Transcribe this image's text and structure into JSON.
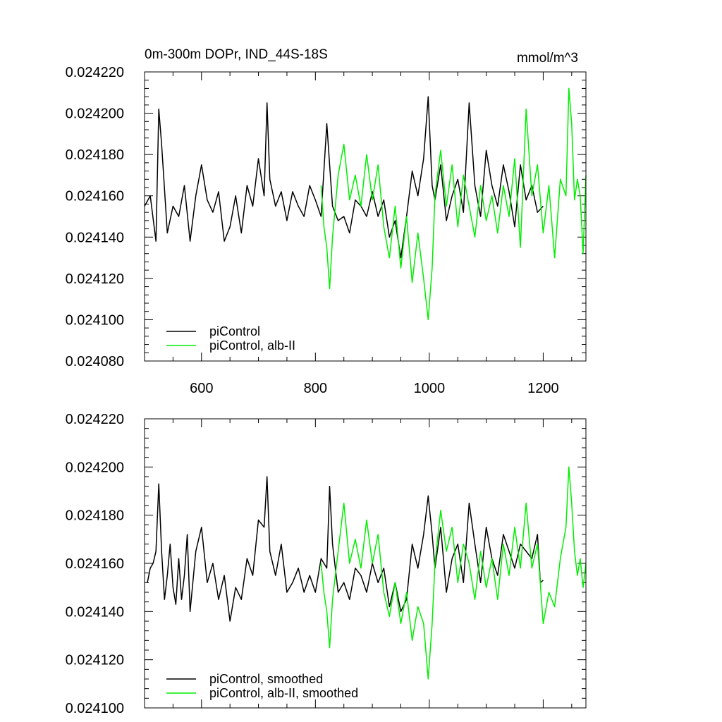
{
  "chart_data": [
    {
      "type": "line",
      "title": "0m-300m DOPr, IND_44S-18S",
      "units": "mmol/m^3",
      "xlim": [
        500,
        1275
      ],
      "ylim": [
        0.02408,
        0.02422
      ],
      "xticks": [
        600,
        800,
        1000,
        1200
      ],
      "xtick_labels": [
        "600",
        "800",
        "1000",
        "1200"
      ],
      "yticks": [
        0.02408,
        0.0241,
        0.02412,
        0.02414,
        0.02416,
        0.02418,
        0.0242,
        0.02422
      ],
      "ytick_labels": [
        "0.024080",
        "0.024100",
        "0.024120",
        "0.024140",
        "0.024160",
        "0.024180",
        "0.024200",
        "0.024220"
      ],
      "legend_position": "bottom-left",
      "series": [
        {
          "name": "piControl",
          "color": "#000000",
          "x": [
            500,
            510,
            520,
            525,
            530,
            540,
            550,
            560,
            570,
            580,
            590,
            600,
            610,
            620,
            630,
            640,
            650,
            660,
            670,
            680,
            690,
            700,
            710,
            715,
            720,
            730,
            740,
            750,
            760,
            770,
            780,
            790,
            800,
            810,
            820,
            825,
            830,
            840,
            850,
            860,
            870,
            880,
            890,
            900,
            910,
            920,
            930,
            940,
            950,
            960,
            970,
            980,
            990,
            998,
            1005,
            1010,
            1020,
            1030,
            1040,
            1050,
            1060,
            1070,
            1080,
            1090,
            1100,
            1110,
            1120,
            1130,
            1140,
            1150,
            1160,
            1170,
            1180,
            1190,
            1200
          ],
          "values": [
            0.024155,
            0.02416,
            0.024138,
            0.024202,
            0.024185,
            0.024142,
            0.024155,
            0.02415,
            0.024165,
            0.024138,
            0.02416,
            0.024175,
            0.024158,
            0.024152,
            0.024162,
            0.024138,
            0.024145,
            0.02416,
            0.024142,
            0.024165,
            0.024155,
            0.024178,
            0.02416,
            0.024205,
            0.024168,
            0.024155,
            0.024162,
            0.024148,
            0.024162,
            0.024155,
            0.02415,
            0.024165,
            0.024158,
            0.02415,
            0.024195,
            0.024175,
            0.024155,
            0.024148,
            0.02415,
            0.024142,
            0.024158,
            0.024155,
            0.02415,
            0.024162,
            0.02415,
            0.024158,
            0.02414,
            0.024148,
            0.02413,
            0.02415,
            0.024172,
            0.02416,
            0.024178,
            0.024208,
            0.024165,
            0.024158,
            0.024175,
            0.024148,
            0.02416,
            0.024168,
            0.024152,
            0.024205,
            0.024165,
            0.02415,
            0.024182,
            0.024165,
            0.024155,
            0.024175,
            0.024162,
            0.024145,
            0.024175,
            0.024158,
            0.024165,
            0.024152,
            0.024155
          ]
        },
        {
          "name": "piControl, alb-II",
          "color": "#00ee00",
          "x": [
            810,
            815,
            820,
            825,
            830,
            840,
            850,
            860,
            870,
            880,
            890,
            900,
            910,
            920,
            930,
            940,
            950,
            960,
            970,
            980,
            990,
            998,
            1005,
            1010,
            1020,
            1030,
            1040,
            1050,
            1060,
            1070,
            1080,
            1090,
            1100,
            1110,
            1120,
            1130,
            1140,
            1150,
            1160,
            1170,
            1180,
            1190,
            1200,
            1210,
            1220,
            1230,
            1240,
            1245,
            1250,
            1255,
            1260,
            1265,
            1270,
            1275
          ],
          "values": [
            0.024165,
            0.024145,
            0.024135,
            0.024115,
            0.02414,
            0.02417,
            0.024185,
            0.024158,
            0.02417,
            0.024155,
            0.02418,
            0.024158,
            0.024175,
            0.024145,
            0.02413,
            0.024155,
            0.024125,
            0.02415,
            0.024118,
            0.024142,
            0.02412,
            0.0241,
            0.024125,
            0.02416,
            0.024182,
            0.024155,
            0.024175,
            0.024145,
            0.02417,
            0.024155,
            0.02414,
            0.024165,
            0.024148,
            0.02416,
            0.024142,
            0.024165,
            0.02415,
            0.024178,
            0.024135,
            0.024202,
            0.02416,
            0.024175,
            0.024142,
            0.024165,
            0.02413,
            0.024168,
            0.02416,
            0.024212,
            0.024195,
            0.024158,
            0.024168,
            0.02416,
            0.024132,
            0.02417
          ]
        }
      ]
    },
    {
      "type": "line",
      "xlim": [
        500,
        1275
      ],
      "ylim": [
        0.0241,
        0.02422
      ],
      "xticks": [
        600,
        800,
        1000,
        1200
      ],
      "yticks": [
        0.0241,
        0.02412,
        0.02414,
        0.02416,
        0.02418,
        0.0242,
        0.02422
      ],
      "ytick_labels": [
        "0.024100",
        "0.024120",
        "0.024140",
        "0.024160",
        "0.024180",
        "0.024200",
        "0.024220"
      ],
      "legend_position": "bottom-left",
      "series": [
        {
          "name": "piControl, smoothed",
          "color": "#000000",
          "x": [
            505,
            510,
            515,
            520,
            525,
            530,
            535,
            540,
            545,
            550,
            555,
            560,
            565,
            570,
            575,
            580,
            590,
            600,
            610,
            620,
            630,
            640,
            650,
            660,
            670,
            680,
            690,
            700,
            710,
            715,
            720,
            730,
            740,
            750,
            760,
            770,
            780,
            790,
            800,
            810,
            820,
            825,
            830,
            840,
            850,
            860,
            870,
            880,
            890,
            900,
            910,
            920,
            930,
            940,
            950,
            960,
            970,
            980,
            990,
            998,
            1005,
            1010,
            1020,
            1030,
            1040,
            1050,
            1060,
            1070,
            1080,
            1090,
            1100,
            1110,
            1120,
            1130,
            1140,
            1150,
            1160,
            1170,
            1180,
            1190,
            1195,
            1200
          ],
          "values": [
            0.024152,
            0.024158,
            0.02416,
            0.024165,
            0.024193,
            0.024165,
            0.024145,
            0.024155,
            0.024168,
            0.02415,
            0.024143,
            0.024162,
            0.024145,
            0.024155,
            0.024172,
            0.02414,
            0.024165,
            0.024175,
            0.024152,
            0.02416,
            0.024145,
            0.024155,
            0.024136,
            0.02415,
            0.024145,
            0.024162,
            0.024155,
            0.024178,
            0.024175,
            0.024196,
            0.024165,
            0.024155,
            0.024168,
            0.024148,
            0.024152,
            0.024158,
            0.024148,
            0.024155,
            0.024148,
            0.024162,
            0.024158,
            0.024192,
            0.024168,
            0.024148,
            0.024152,
            0.024145,
            0.024158,
            0.024155,
            0.024148,
            0.02416,
            0.024152,
            0.024158,
            0.024142,
            0.024152,
            0.02414,
            0.024145,
            0.024168,
            0.024158,
            0.024172,
            0.024188,
            0.024172,
            0.024158,
            0.024175,
            0.024148,
            0.024162,
            0.024168,
            0.024152,
            0.024185,
            0.024168,
            0.024152,
            0.024175,
            0.024162,
            0.024155,
            0.024172,
            0.024165,
            0.024158,
            0.024168,
            0.024165,
            0.024162,
            0.024172,
            0.024152,
            0.024153
          ]
        },
        {
          "name": "piControl, alb-II, smoothed",
          "color": "#00ee00",
          "x": [
            810,
            815,
            820,
            825,
            830,
            840,
            850,
            860,
            870,
            880,
            890,
            900,
            910,
            920,
            930,
            940,
            950,
            960,
            970,
            980,
            990,
            998,
            1005,
            1010,
            1020,
            1030,
            1040,
            1050,
            1060,
            1070,
            1080,
            1090,
            1100,
            1110,
            1120,
            1130,
            1140,
            1150,
            1160,
            1170,
            1180,
            1190,
            1200,
            1210,
            1220,
            1230,
            1240,
            1245,
            1250,
            1255,
            1260,
            1265,
            1270,
            1275
          ],
          "values": [
            0.02416,
            0.024148,
            0.02414,
            0.024125,
            0.024145,
            0.024165,
            0.024185,
            0.02416,
            0.02417,
            0.024158,
            0.024178,
            0.02416,
            0.024172,
            0.024148,
            0.024138,
            0.024152,
            0.024135,
            0.024148,
            0.024128,
            0.024142,
            0.024135,
            0.024112,
            0.024135,
            0.02416,
            0.024182,
            0.024165,
            0.024175,
            0.024152,
            0.024168,
            0.02416,
            0.024145,
            0.024165,
            0.02415,
            0.024162,
            0.024145,
            0.024168,
            0.024155,
            0.024175,
            0.024158,
            0.024185,
            0.024158,
            0.024168,
            0.024135,
            0.024148,
            0.024142,
            0.024162,
            0.024175,
            0.0242,
            0.024185,
            0.024165,
            0.024155,
            0.024162,
            0.02415,
            0.02416
          ]
        }
      ]
    }
  ]
}
